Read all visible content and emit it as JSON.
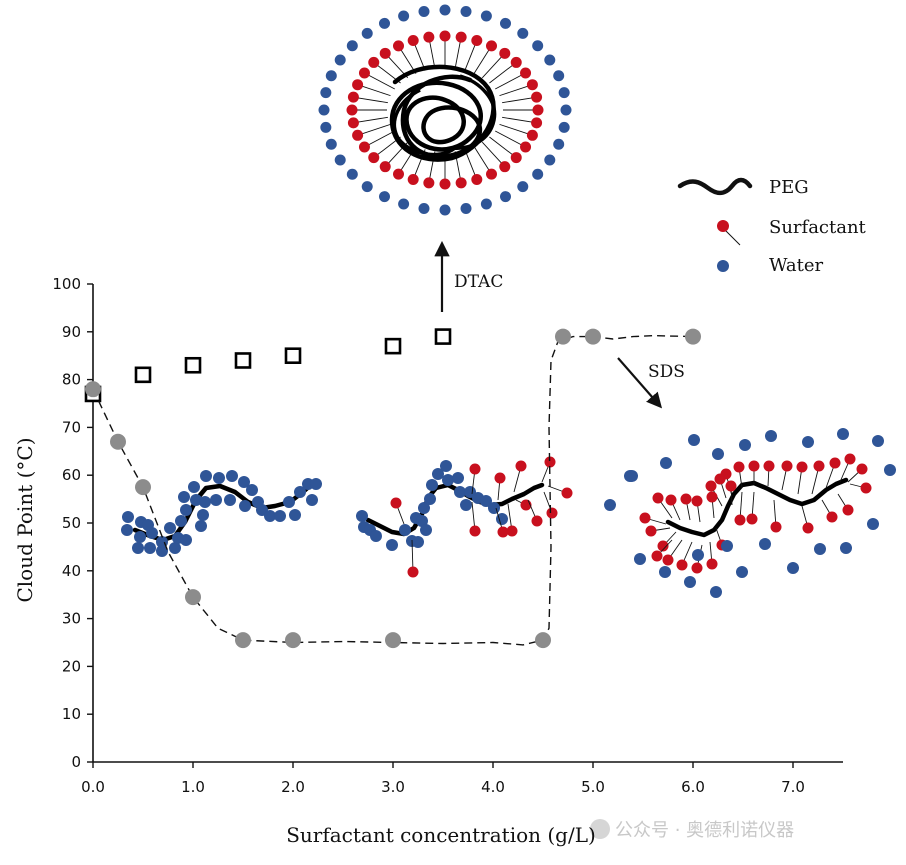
{
  "chart_data": {
    "type": "scatter",
    "xlabel": "Surfactant concentration (g/L)",
    "ylabel": "Cloud Point (°C)",
    "xlim": [
      0,
      7.5
    ],
    "ylim": [
      0,
      100
    ],
    "x_ticks": [
      "0.0",
      "1.0",
      "2.0",
      "3.0",
      "4.0",
      "5.0",
      "6.0",
      "7.0"
    ],
    "y_ticks": [
      "0",
      "10",
      "20",
      "30",
      "40",
      "50",
      "60",
      "70",
      "80",
      "90",
      "100"
    ],
    "series": [
      {
        "name": "DTAC",
        "marker": "open-square",
        "color": "#000000",
        "x": [
          0.0,
          0.5,
          1.0,
          1.5,
          2.0,
          3.0,
          3.5
        ],
        "y": [
          77,
          81,
          83,
          84,
          85,
          87,
          89
        ]
      },
      {
        "name": "SDS",
        "marker": "filled-circle",
        "color": "#8c8c8c",
        "line": "dashed",
        "x": [
          0.0,
          0.25,
          0.5,
          1.0,
          1.5,
          2.0,
          3.0,
          4.5,
          4.7,
          5.0,
          6.0
        ],
        "y": [
          78,
          67,
          57.5,
          34.5,
          25.5,
          25.5,
          25.5,
          25.5,
          89,
          89,
          89
        ]
      }
    ],
    "annotations": [
      {
        "text": "DTAC",
        "arrow": "up"
      },
      {
        "text": "SDS",
        "arrow": "down-right"
      }
    ],
    "legend": {
      "placement": "top-right",
      "items": [
        {
          "label": "PEG",
          "symbol": "black-wavy-line"
        },
        {
          "label": "Surfactant",
          "symbol": "red-circle-with-tail",
          "color": "#c8101e"
        },
        {
          "label": "Water",
          "symbol": "blue-circle",
          "color": "#2f5597"
        }
      ]
    },
    "grid": false
  },
  "colors": {
    "surfactant": "#c8101e",
    "water": "#2f5597",
    "peg": "#000000",
    "sds_marker": "#8c8c8c"
  },
  "watermark": "公众号 · 奥德利诺仪器"
}
